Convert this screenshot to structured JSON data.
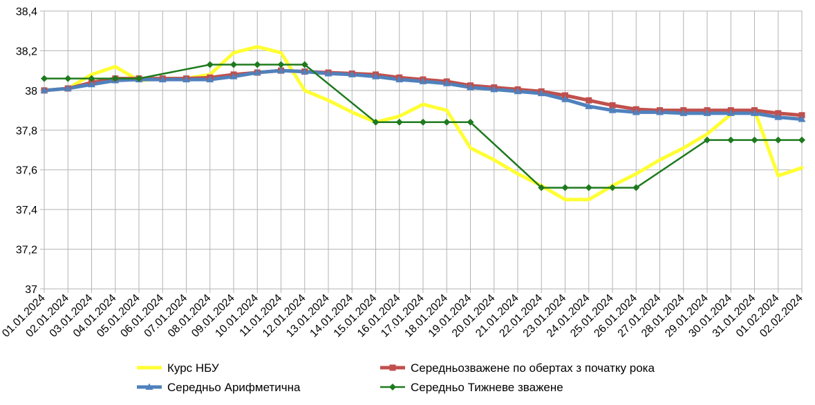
{
  "chart_data": {
    "type": "line",
    "title": "",
    "xlabel": "",
    "ylabel": "",
    "ylim": [
      37,
      38.4
    ],
    "yticks": [
      37,
      37.2,
      37.4,
      37.6,
      37.8,
      38,
      38.2,
      38.4
    ],
    "ytick_labels": [
      "37",
      "37,2",
      "37,4",
      "37,6",
      "37,8",
      "38",
      "38,2",
      "38,4"
    ],
    "grid": true,
    "legend_placement": "bottom",
    "categories": [
      "01.01.2024",
      "02.01.2024",
      "03.01.2024",
      "04.01.2024",
      "05.01.2024",
      "06.01.2024",
      "07.01.2024",
      "08.01.2024",
      "09.01.2024",
      "10.01.2024",
      "11.01.2024",
      "12.01.2024",
      "13.01.2024",
      "14.01.2024",
      "15.01.2024",
      "16.01.2024",
      "17.01.2024",
      "18.01.2024",
      "19.01.2024",
      "20.01.2024",
      "21.01.2024",
      "22.01.2024",
      "23.01.2024",
      "24.01.2024",
      "25.01.2024",
      "26.01.2024",
      "27.01.2024",
      "28.01.2024",
      "29.01.2024",
      "30.01.2024",
      "31.01.2024",
      "01.02.2024",
      "02.02.2024"
    ],
    "series": [
      {
        "name": "Курс НБУ",
        "color": "#ffff33",
        "marker": "none",
        "values": [
          38.0,
          38.01,
          38.08,
          38.12,
          38.05,
          38.06,
          38.06,
          38.08,
          38.19,
          38.22,
          38.19,
          38.0,
          37.95,
          37.89,
          37.84,
          37.87,
          37.93,
          37.9,
          37.71,
          37.65,
          37.58,
          37.52,
          37.45,
          37.45,
          37.52,
          37.58,
          37.65,
          37.71,
          37.78,
          37.88,
          37.9,
          37.57,
          37.61
        ]
      },
      {
        "name": "Середньозважене по обертах з початку рока",
        "color": "#c0504d",
        "marker": "square",
        "values": [
          38.0,
          38.01,
          38.04,
          38.06,
          38.06,
          38.06,
          38.06,
          38.065,
          38.08,
          38.09,
          38.1,
          38.095,
          38.09,
          38.085,
          38.08,
          38.065,
          38.055,
          38.045,
          38.025,
          38.015,
          38.005,
          37.995,
          37.975,
          37.95,
          37.925,
          37.905,
          37.9,
          37.9,
          37.9,
          37.9,
          37.9,
          37.885,
          37.875
        ]
      },
      {
        "name": "Середньо Арифметична",
        "color": "#4f81bd",
        "marker": "triangle",
        "values": [
          38.0,
          38.01,
          38.03,
          38.05,
          38.055,
          38.055,
          38.055,
          38.055,
          38.07,
          38.09,
          38.1,
          38.095,
          38.085,
          38.08,
          38.07,
          38.055,
          38.045,
          38.035,
          38.015,
          38.005,
          37.995,
          37.985,
          37.955,
          37.92,
          37.9,
          37.89,
          37.89,
          37.885,
          37.885,
          37.885,
          37.885,
          37.865,
          37.855
        ]
      },
      {
        "name": "Середньо Тижневе зважене",
        "color": "#1e7a1e",
        "marker": "diamond",
        "values": [
          38.06,
          38.06,
          38.06,
          38.06,
          38.06,
          null,
          null,
          38.13,
          38.13,
          38.13,
          38.13,
          38.13,
          null,
          null,
          37.84,
          37.84,
          37.84,
          37.84,
          37.84,
          null,
          null,
          37.51,
          37.51,
          37.51,
          37.51,
          37.51,
          null,
          null,
          37.75,
          37.75,
          37.75,
          37.75,
          37.75
        ]
      }
    ]
  }
}
